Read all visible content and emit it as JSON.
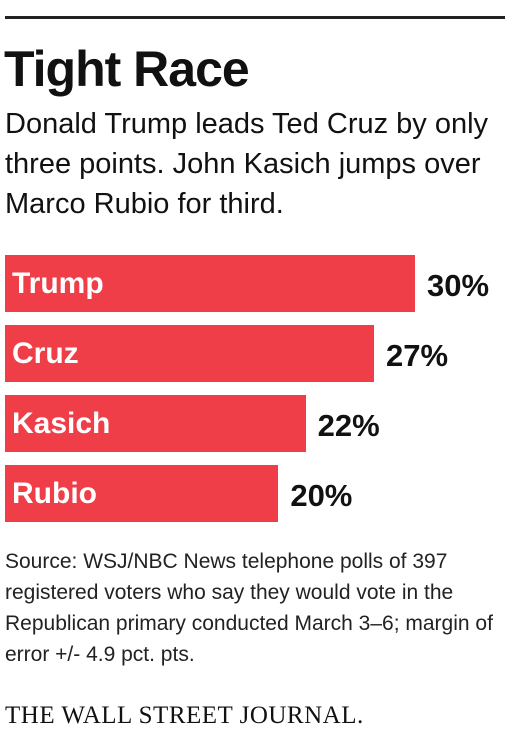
{
  "chart_data": {
    "type": "bar",
    "orientation": "horizontal",
    "title": "Tight Race",
    "subtitle": "Donald Trump leads Ted Cruz by only three points. John Kasich jumps over Marco Rubio for third.",
    "categories": [
      "Trump",
      "Cruz",
      "Kasich",
      "Rubio"
    ],
    "values": [
      30,
      27,
      22,
      20
    ],
    "value_labels": [
      "30%",
      "27%",
      "22%",
      "20%"
    ],
    "color": "#ef3e48",
    "source": "Source: WSJ/NBC News telephone polls of 397 registered voters who say they would vote in the Republican primary conducted March 3–6; margin of error +/- 4.9 pct. pts.",
    "footer": "THE WALL STREET JOURNAL."
  }
}
